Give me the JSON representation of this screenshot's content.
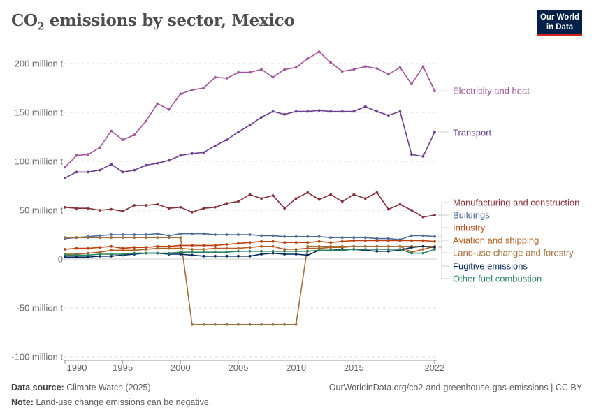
{
  "header": {
    "title_main": "CO",
    "title_sub": "2",
    "title_rest": " emissions by sector, Mexico",
    "logo_line1": "Our World",
    "logo_line2": "in Data",
    "logo_colors": {
      "bg": "#002147",
      "accent": "#ce261e"
    }
  },
  "footer": {
    "source_label": "Data source:",
    "source": "Climate Watch (2025)",
    "url": "OurWorldinData.org/co2-and-greenhouse-gas-emissions | CC BY",
    "note_label": "Note:",
    "note": "Land-use change emissions can be negative."
  },
  "chart_data": {
    "type": "line",
    "title": "CO₂ emissions by sector, Mexico",
    "xlim": [
      1990,
      2022
    ],
    "ylim": [
      -100,
      200
    ],
    "grid": true,
    "legend": "right (line end labels)",
    "x_ticks": [
      "1990",
      "1995",
      "2000",
      "2005",
      "2010",
      "2015",
      "2022"
    ],
    "y_ticks": [
      {
        "v": 200,
        "label": "200 million t"
      },
      {
        "v": 150,
        "label": "150 million t"
      },
      {
        "v": 100,
        "label": "100 million t"
      },
      {
        "v": 50,
        "label": "50 million t"
      },
      {
        "v": 0,
        "label": "0"
      },
      {
        "v": -50,
        "label": "-50 million t"
      },
      {
        "v": -100,
        "label": "-100 million t"
      }
    ],
    "x": [
      1990,
      1991,
      1992,
      1993,
      1994,
      1995,
      1996,
      1997,
      1998,
      1999,
      2000,
      2001,
      2002,
      2003,
      2004,
      2005,
      2006,
      2007,
      2008,
      2009,
      2010,
      2011,
      2012,
      2013,
      2014,
      2015,
      2016,
      2017,
      2018,
      2019,
      2020,
      2021,
      2022
    ],
    "series": [
      {
        "name": "Electricity and heat",
        "color": "#a2559c",
        "values": [
          94,
          106,
          107,
          114,
          131,
          122,
          127,
          141,
          159,
          153,
          169,
          173,
          175,
          186,
          185,
          191,
          191,
          194,
          186,
          194,
          196,
          205,
          212,
          201,
          192,
          194,
          197,
          195,
          189,
          196,
          179,
          197,
          172
        ]
      },
      {
        "name": "Transport",
        "color": "#6d3e91",
        "values": [
          83,
          89,
          89,
          91,
          97,
          89,
          91,
          96,
          98,
          101,
          106,
          108,
          109,
          116,
          122,
          130,
          137,
          145,
          151,
          148,
          151,
          151,
          152,
          151,
          151,
          151,
          156,
          151,
          147,
          151,
          107,
          105,
          130
        ]
      },
      {
        "name": "Manufacturing and construction",
        "color": "#883039",
        "values": [
          53,
          52,
          52,
          50,
          51,
          49,
          55,
          55,
          56,
          52,
          53,
          48,
          52,
          53,
          57,
          59,
          66,
          62,
          65,
          52,
          62,
          68,
          61,
          66,
          59,
          66,
          62,
          68,
          51,
          56,
          50,
          43,
          45
        ]
      },
      {
        "name": "Buildings",
        "color": "#4c6a9c",
        "values": [
          21,
          22,
          23,
          24,
          25,
          25,
          25,
          25,
          26,
          24,
          26,
          26,
          26,
          25,
          25,
          25,
          25,
          24,
          24,
          23,
          23,
          23,
          23,
          22,
          22,
          22,
          22,
          21,
          21,
          20,
          24,
          24,
          23
        ]
      },
      {
        "name": "Industry",
        "color": "#c0410f",
        "values": [
          10,
          11,
          11,
          12,
          13,
          11,
          12,
          12,
          13,
          13,
          14,
          14,
          14,
          14,
          15,
          16,
          17,
          18,
          18,
          17,
          17,
          17,
          18,
          17,
          18,
          19,
          19,
          19,
          19,
          19,
          19,
          19,
          18
        ]
      },
      {
        "name": "Aviation and shipping",
        "color": "#b0601f",
        "values": [
          5,
          5,
          6,
          7,
          9,
          9,
          9,
          10,
          11,
          11,
          11,
          10,
          10,
          11,
          11,
          11,
          12,
          13,
          13,
          10,
          10,
          11,
          11,
          12,
          12,
          13,
          13,
          13,
          13,
          13,
          7,
          10,
          13
        ]
      },
      {
        "name": "Land-use change and forestry",
        "color": "#a2703a",
        "values": [
          22,
          22,
          22,
          22,
          22,
          22,
          22,
          22,
          22,
          22,
          22,
          -67,
          -67,
          -67,
          -67,
          -67,
          -67,
          -67,
          -67,
          -67,
          -67,
          13,
          13,
          13,
          13,
          13,
          13,
          13,
          13,
          13,
          13,
          13,
          13
        ]
      },
      {
        "name": "Fugitive emissions",
        "color": "#00295b",
        "values": [
          2,
          2,
          2,
          3,
          3,
          4,
          5,
          6,
          6,
          5,
          5,
          4,
          3,
          3,
          3,
          3,
          3,
          5,
          6,
          5,
          5,
          4,
          9,
          9,
          10,
          10,
          9,
          8,
          8,
          9,
          12,
          13,
          12
        ]
      },
      {
        "name": "Other fuel combustion",
        "color": "#2c8465",
        "values": [
          4,
          4,
          4,
          5,
          5,
          5,
          6,
          6,
          6,
          6,
          7,
          7,
          7,
          7,
          7,
          8,
          8,
          8,
          8,
          8,
          8,
          8,
          9,
          9,
          9,
          10,
          10,
          10,
          10,
          10,
          6,
          6,
          10
        ]
      }
    ]
  }
}
